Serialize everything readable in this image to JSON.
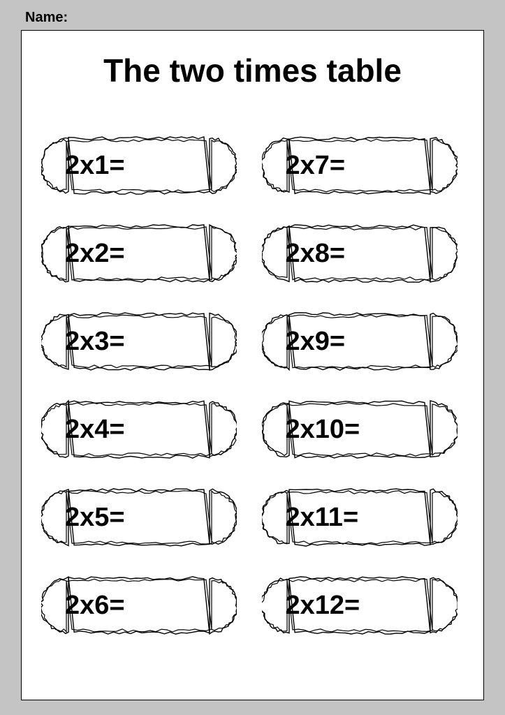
{
  "header": {
    "name_label": "Name:"
  },
  "title": "The two times table",
  "style": {
    "page_bg": "#c4c4c4",
    "sheet_bg": "#ffffff",
    "border_color": "#000000",
    "text_color": "#000000",
    "title_fontsize": 46,
    "equation_fontsize": 38,
    "font_family": "Comic Sans MS",
    "cloud_stroke": "#000000",
    "cloud_fill": "#ffffff",
    "columns": 2,
    "rows": 6
  },
  "equations": {
    "left": [
      "2x1=",
      "2x2=",
      "2x3=",
      "2x4=",
      "2x5=",
      "2x6="
    ],
    "right": [
      "2x7=",
      "2x8=",
      "2x9=",
      "2x10=",
      "2x11=",
      "2x12="
    ]
  }
}
